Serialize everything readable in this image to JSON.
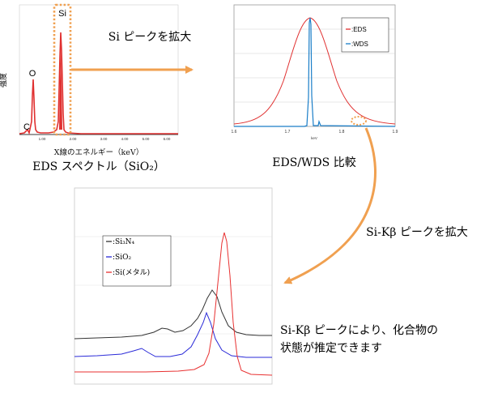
{
  "eds_panel": {
    "ylabel": "強度",
    "xlabel": "X線のエネルギー（keV）",
    "xticks": [
      "1.00",
      "2.00",
      "3.00",
      "4.00",
      "5.00",
      "6.00"
    ],
    "peak_O": "O",
    "peak_C": "C",
    "peak_Si": "Si",
    "caption": "EDS スペクトル（SiO₂）"
  },
  "arrow1_label": "Si ピークを拡大",
  "compare_panel": {
    "xticks": [
      "1.6",
      "1.7",
      "1.8",
      "1.9"
    ],
    "xlabel": "keV",
    "legend": [
      ":EDS",
      ":WDS"
    ],
    "caption": "EDS/WDS 比較"
  },
  "arrow2_label": "Si-Kβ ピークを拡大",
  "kb_panel": {
    "legend": [
      ":Si₃N₄",
      ":SiO₂",
      ":Si(メタル)"
    ]
  },
  "conclusion_line1": "Si-Kβ ピークにより、化合物の",
  "conclusion_line2": "状態が推定できます",
  "colors": {
    "accent_orange": "#f0a050",
    "eds_red": "#e03030",
    "wds_blue": "#1a7ec8",
    "black_series": "#333333",
    "blue_series": "#2a2ad8",
    "red_series": "#e83030"
  },
  "chart_data": [
    {
      "type": "line",
      "xlabel": "X線のエネルギー（keV）",
      "ylabel": "強度",
      "series": [
        {
          "name": "O",
          "peak_x": 0.52
        },
        {
          "name": "C",
          "peak_x": 0.28
        },
        {
          "name": "Si",
          "peak_x": 1.74
        }
      ]
    },
    {
      "type": "line",
      "xlabel": "keV",
      "xlim": [
        1.6,
        1.9
      ],
      "series": [
        {
          "name": ":EDS",
          "peak_x": 1.74
        },
        {
          "name": ":WDS",
          "peak_x": 1.74
        }
      ]
    },
    {
      "type": "line",
      "series": [
        {
          "name": ":Si₃N₄"
        },
        {
          "name": ":SiO₂"
        },
        {
          "name": ":Si(メタル)"
        }
      ]
    }
  ]
}
